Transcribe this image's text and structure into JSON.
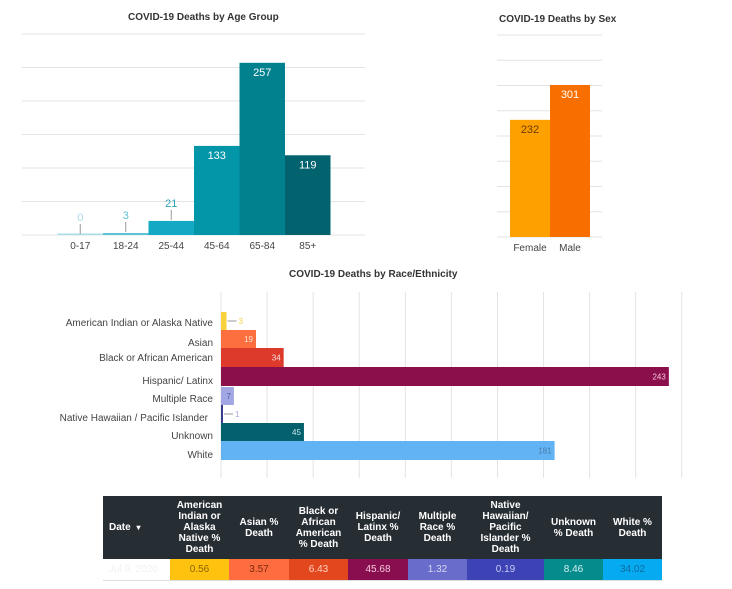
{
  "chart_data": [
    {
      "id": "age",
      "type": "bar",
      "title": "COVID-19 Deaths by Age Group",
      "categories": [
        "0-17",
        "18-24",
        "25-44",
        "45-64",
        "65-84",
        "85+"
      ],
      "values": [
        0,
        3,
        21,
        133,
        257,
        119
      ],
      "colors": [
        "#a9dde6",
        "#5ec3d5",
        "#13a9c4",
        "#0396a8",
        "#01808e",
        "#02626d"
      ],
      "label_colors": [
        "#a9dde6",
        "#5ec3d5",
        "#2aa3b5",
        "#ffffff",
        "#ffffff",
        "#ffffff"
      ],
      "xlabel": "",
      "ylabel": "",
      "ylim": [
        0,
        300
      ],
      "grid": true,
      "legend": "none"
    },
    {
      "id": "sex",
      "type": "bar",
      "title": "COVID-19 Deaths by Sex",
      "categories": [
        "Female",
        "Male"
      ],
      "values": [
        232,
        301
      ],
      "colors": [
        "#fda000",
        "#f86f00"
      ],
      "label_colors": [
        "#6b3c00",
        "#ffffff"
      ],
      "xlabel": "",
      "ylabel": "",
      "ylim": [
        0,
        400
      ],
      "grid": true,
      "legend": "none"
    },
    {
      "id": "race",
      "type": "bar",
      "orientation": "horizontal",
      "title": "COVID-19 Deaths by Race/Ethnicity",
      "categories": [
        "American Indian or Alaska Native",
        "Asian",
        "Black or African American",
        "Hispanic/ Latinx",
        "Multiple Race",
        "Native Hawaiian / Pacific Islander",
        "Unknown",
        "White"
      ],
      "values": [
        3,
        19,
        34,
        243,
        7,
        1,
        45,
        181
      ],
      "colors": [
        "#f7d23e",
        "#fd6f3f",
        "#dd3a2c",
        "#8a0f4a",
        "#a2a6e2",
        "#3a3e8e",
        "#03606c",
        "#62b3f4"
      ],
      "label_colors": [
        "#f7d23e",
        "#ffe3d6",
        "#ffe0dc",
        "#f7c6de",
        "#505aa8",
        "#a2a6e2",
        "#c6e9ec",
        "#4a7ca8"
      ],
      "xlim": [
        0,
        250
      ],
      "grid": true,
      "legend": "none"
    }
  ],
  "table": {
    "headers": [
      "Date",
      "American Indian or Alaska Native % Death",
      "Asian % Death",
      "Black or African American % Death",
      "Hispanic/ Latinx % Death",
      "Multiple Race % Death",
      "Native Hawaiian/ Pacific Islander % Death",
      "Unknown % Death",
      "White % Death"
    ],
    "sort_icon": "sort-desc-icon",
    "sort_glyph": "▾",
    "row": {
      "date": "Jul 9, 2020",
      "values": [
        "0.56",
        "3.57",
        "6.43",
        "45.68",
        "1.32",
        "0.19",
        "8.46",
        "34.02"
      ]
    },
    "cell_colors": [
      "#ffc20e",
      "#fd6d3f",
      "#e3471e",
      "#880e4f",
      "#6a6ccb",
      "#3d43b5",
      "#048c8c",
      "#06aaf0"
    ],
    "cell_text_colors": [
      "#8a6500",
      "#7a2a10",
      "#ffd2c0",
      "#f5c8dc",
      "#d8daf5",
      "#c8cbf5",
      "#d5f0f0",
      "#0a6aa0"
    ]
  }
}
